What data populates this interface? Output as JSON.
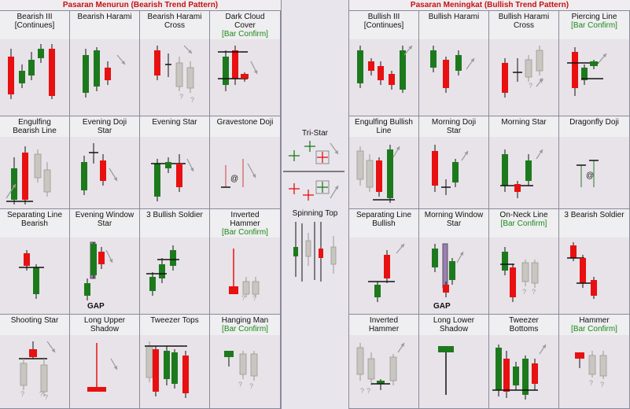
{
  "left_panel": {
    "title": "Pasaran Menurun (Bearish Trend Pattern)",
    "cells": [
      {
        "name": "Bearish III",
        "sub": "[Continues]",
        "confirm": ""
      },
      {
        "name": "Bearish Harami",
        "sub": "",
        "confirm": ""
      },
      {
        "name": "Bearish Harami",
        "sub": "Cross",
        "confirm": ""
      },
      {
        "name": "Dark Cloud",
        "sub": "Cover",
        "confirm": "[Bar Confirm]"
      },
      {
        "name": "Engulfing",
        "sub": "Bearish Line",
        "confirm": ""
      },
      {
        "name": "Evening Doji",
        "sub": "Star",
        "confirm": ""
      },
      {
        "name": "Evening Star",
        "sub": "",
        "confirm": ""
      },
      {
        "name": "Gravestone Doji",
        "sub": "",
        "confirm": ""
      },
      {
        "name": "Separating Line",
        "sub": "Bearish",
        "confirm": ""
      },
      {
        "name": "Evening Window",
        "sub": "Star",
        "confirm": ""
      },
      {
        "name": "3 Bullish Soldier",
        "sub": "",
        "confirm": ""
      },
      {
        "name": "Inverted",
        "sub": "Hammer",
        "confirm": "[Bar Confirm]"
      },
      {
        "name": "Shooting Star",
        "sub": "",
        "confirm": ""
      },
      {
        "name": "Long Upper",
        "sub": "Shadow",
        "confirm": ""
      },
      {
        "name": "Tweezer Tops",
        "sub": "",
        "confirm": ""
      },
      {
        "name": "Hanging Man",
        "sub": "",
        "confirm": "[Bar Confirm]"
      }
    ]
  },
  "right_panel": {
    "title": "Pasaran Meningkat (Bullish Trend Pattern)",
    "cells": [
      {
        "name": "Bullish III",
        "sub": "[Continues]",
        "confirm": ""
      },
      {
        "name": "Bullish Harami",
        "sub": "",
        "confirm": ""
      },
      {
        "name": "Bullish Harami",
        "sub": "Cross",
        "confirm": ""
      },
      {
        "name": "Piercing Line",
        "sub": "",
        "confirm": "[Bar Confirm]"
      },
      {
        "name": "Engulfing Bullish",
        "sub": "Line",
        "confirm": ""
      },
      {
        "name": "Morning Doji",
        "sub": "Star",
        "confirm": ""
      },
      {
        "name": "Morning Star",
        "sub": "",
        "confirm": ""
      },
      {
        "name": "Dragonfly Doji",
        "sub": "",
        "confirm": ""
      },
      {
        "name": "Separating Line",
        "sub": "Bullish",
        "confirm": ""
      },
      {
        "name": "Morning Window",
        "sub": "Star",
        "confirm": ""
      },
      {
        "name": "On-Neck Line",
        "sub": "",
        "confirm": "[Bar Confirm]"
      },
      {
        "name": "3 Bearish Soldier",
        "sub": "",
        "confirm": ""
      },
      {
        "name": "Inverted",
        "sub": "Hammer",
        "confirm": ""
      },
      {
        "name": "Long Lower",
        "sub": "Shadow",
        "confirm": ""
      },
      {
        "name": "Tweezer",
        "sub": "Bottoms",
        "confirm": ""
      },
      {
        "name": "Hammer",
        "sub": "",
        "confirm": "[Bar Confirm]"
      }
    ]
  },
  "middle": {
    "tri_star": "Tri-Star",
    "spinning_top": "Spinning Top"
  },
  "annotations": {
    "gap": "GAP",
    "question": "?",
    "doji_at": "@"
  },
  "colors": {
    "bull": "#1c7a1c",
    "bear": "#e81010",
    "neutral": "#c8c6c0",
    "title": "#c81010",
    "confirm": "#1a8a1a",
    "arrow": "#9a9a9a"
  }
}
